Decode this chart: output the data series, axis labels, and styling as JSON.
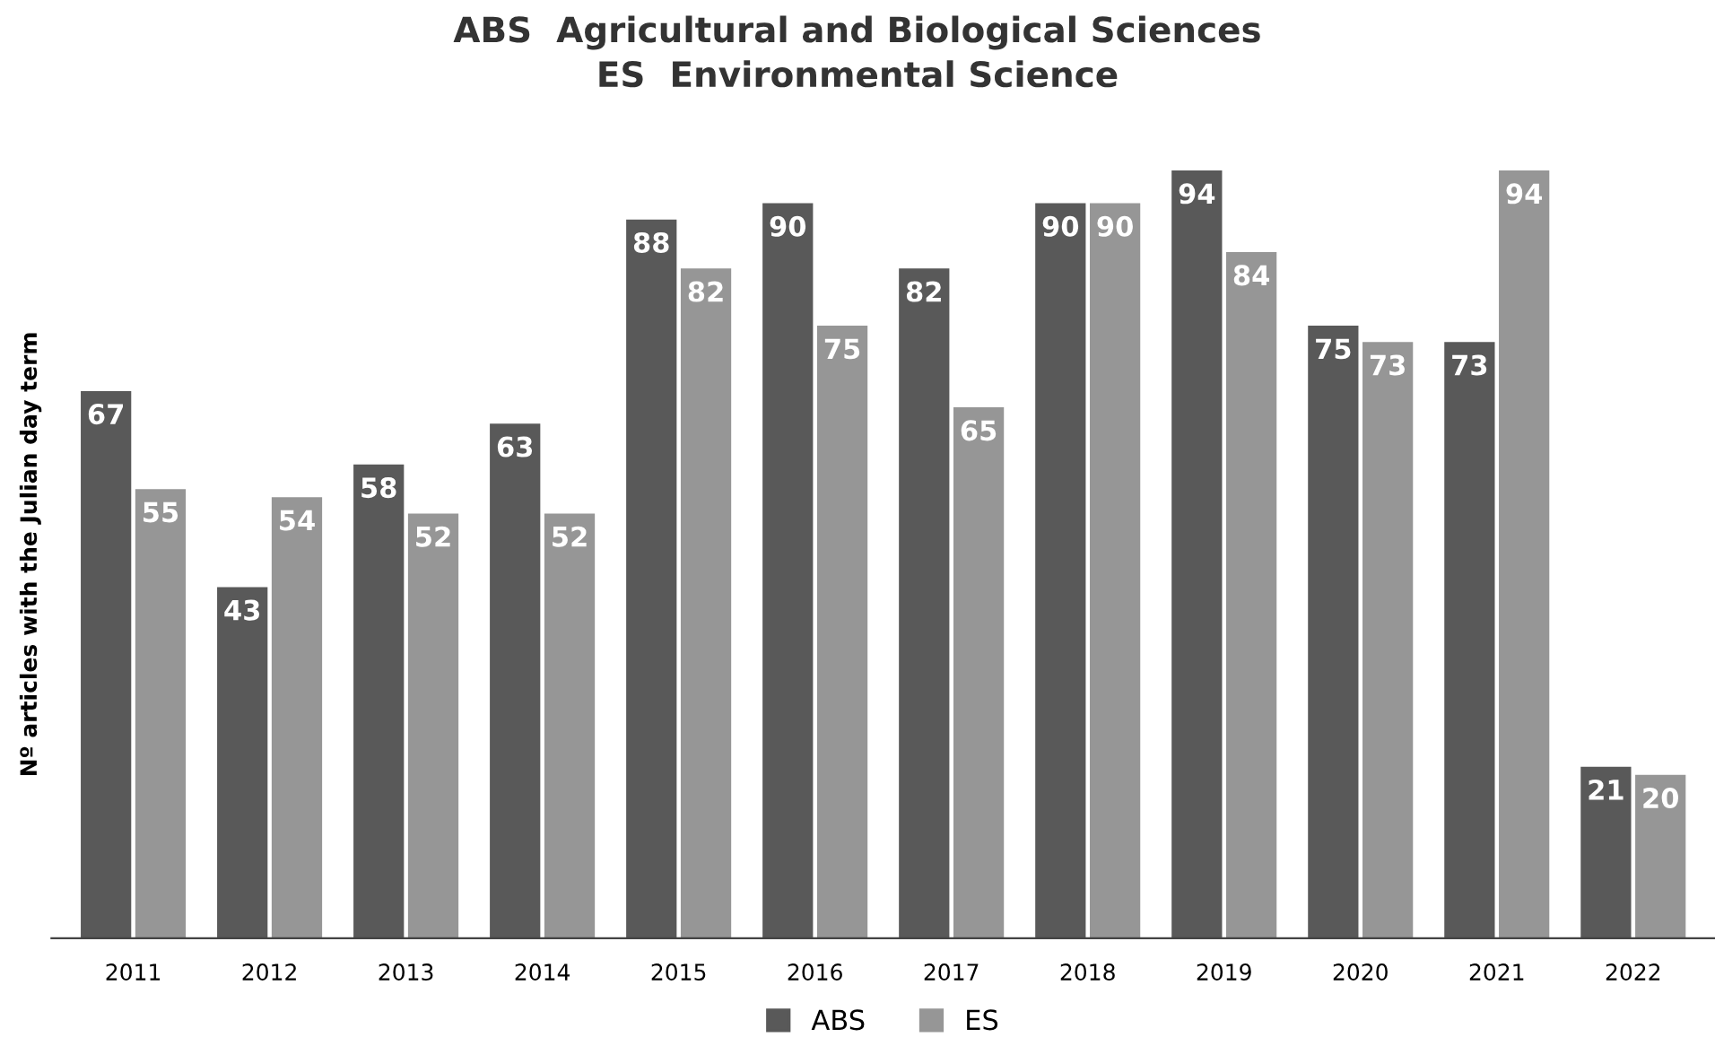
{
  "chart_data": {
    "type": "bar",
    "title": "ABS  Agricultural and Biological Sciences\nES  Environmental Science",
    "ylabel": "Nº articles with the Julian day term",
    "categories": [
      "2011",
      "2012",
      "2013",
      "2014",
      "2015",
      "2016",
      "2017",
      "2018",
      "2019",
      "2020",
      "2021",
      "2022"
    ],
    "series": [
      {
        "name": "ABS",
        "color": "#595959",
        "values": [
          67,
          43,
          58,
          63,
          88,
          90,
          82,
          90,
          94,
          75,
          73,
          21
        ]
      },
      {
        "name": "ES",
        "color": "#969696",
        "values": [
          55,
          54,
          52,
          52,
          82,
          75,
          65,
          90,
          84,
          73,
          94,
          20
        ]
      }
    ],
    "data_labels": true,
    "legend": "bottom",
    "grid": false
  }
}
